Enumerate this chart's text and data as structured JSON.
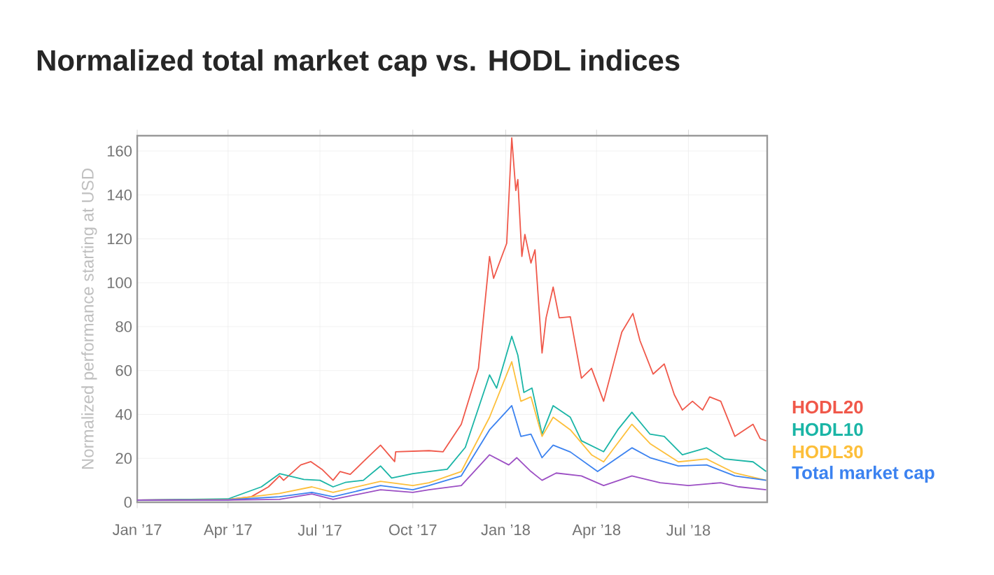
{
  "chart_data": {
    "type": "line",
    "title": "Normalized total market cap vs. HODL indices",
    "ylabel": "Normalized performance starting at USD",
    "xlim": [
      "2017-01-01",
      "2018-09-17"
    ],
    "xticks": [
      {
        "value": "2017-01-01",
        "label": "Jan ’17"
      },
      {
        "value": "2017-04-01",
        "label": "Apr ’17"
      },
      {
        "value": "2017-07-01",
        "label": "Jul ’17"
      },
      {
        "value": "2017-10-01",
        "label": "Oct ’17"
      },
      {
        "value": "2018-01-01",
        "label": "Jan ’18"
      },
      {
        "value": "2018-04-01",
        "label": "Apr ’18"
      },
      {
        "value": "2018-07-01",
        "label": "Jul ’18"
      }
    ],
    "ylim": [
      0,
      167
    ],
    "yticks": [
      0,
      20,
      40,
      60,
      80,
      100,
      120,
      140,
      160
    ],
    "grid": true,
    "legend": "right",
    "series": [
      {
        "name": "HODL20",
        "color": "#f0584a",
        "x": [
          "2017-01-01",
          "2017-04-01",
          "2017-04-24",
          "2017-05-11",
          "2017-05-22",
          "2017-05-26",
          "2017-06-12",
          "2017-06-22",
          "2017-07-03",
          "2017-07-14",
          "2017-07-21",
          "2017-07-31",
          "2017-08-13",
          "2017-08-30",
          "2017-09-13",
          "2017-09-14",
          "2017-10-17",
          "2017-10-31",
          "2017-11-18",
          "2017-12-05",
          "2017-12-16",
          "2017-12-20",
          "2018-01-02",
          "2018-01-07",
          "2018-01-11",
          "2018-01-13",
          "2018-01-17",
          "2018-01-20",
          "2018-01-26",
          "2018-01-30",
          "2018-02-06",
          "2018-02-10",
          "2018-02-17",
          "2018-02-23",
          "2018-03-06",
          "2018-03-17",
          "2018-03-27",
          "2018-04-08",
          "2018-04-16",
          "2018-04-26",
          "2018-05-07",
          "2018-05-14",
          "2018-05-27",
          "2018-06-07",
          "2018-06-17",
          "2018-06-25",
          "2018-07-05",
          "2018-07-15",
          "2018-07-22",
          "2018-08-02",
          "2018-08-16",
          "2018-09-03",
          "2018-09-10",
          "2018-09-16"
        ],
        "values": [
          1,
          1.3,
          2.5,
          7,
          12,
          10,
          17,
          18.5,
          15,
          10,
          14,
          12.7,
          18.5,
          26,
          18.5,
          23,
          23.5,
          23,
          35.5,
          61,
          112,
          102,
          118,
          166,
          142,
          147,
          112,
          122,
          109,
          115,
          68,
          84,
          98,
          84,
          84.5,
          56.5,
          61,
          46,
          60,
          77.5,
          86,
          73.6,
          58.4,
          63,
          49,
          42,
          46,
          42,
          48,
          46,
          30,
          35.5,
          29,
          28
        ]
      },
      {
        "name": "HODL10",
        "color": "#1ab5a6",
        "x": [
          "2017-01-01",
          "2017-04-01",
          "2017-05-04",
          "2017-05-22",
          "2017-06-15",
          "2017-07-01",
          "2017-07-14",
          "2017-07-26",
          "2017-08-13",
          "2017-08-30",
          "2017-09-10",
          "2017-10-01",
          "2017-10-17",
          "2017-11-04",
          "2017-11-22",
          "2017-12-16",
          "2017-12-23",
          "2018-01-07",
          "2018-01-13",
          "2018-01-19",
          "2018-01-27",
          "2018-02-06",
          "2018-02-17",
          "2018-03-06",
          "2018-03-17",
          "2018-04-08",
          "2018-04-22",
          "2018-05-06",
          "2018-05-24",
          "2018-06-07",
          "2018-06-25",
          "2018-07-19",
          "2018-08-06",
          "2018-09-03",
          "2018-09-16"
        ],
        "values": [
          1,
          1.5,
          7,
          13,
          10.4,
          10,
          7,
          9,
          10,
          16.5,
          11,
          13,
          14,
          15,
          25,
          58,
          52,
          75.6,
          67,
          50,
          52,
          31,
          44,
          38.7,
          28,
          23,
          33,
          41,
          31,
          30,
          21.6,
          24.8,
          19.7,
          18.4,
          14
        ]
      },
      {
        "name": "HODL30",
        "color": "#fdbf3a",
        "x": [
          "2017-01-01",
          "2017-04-01",
          "2017-05-22",
          "2017-06-23",
          "2017-07-14",
          "2017-08-30",
          "2017-10-01",
          "2017-10-17",
          "2017-11-18",
          "2017-12-16",
          "2018-01-07",
          "2018-01-16",
          "2018-01-26",
          "2018-02-06",
          "2018-02-17",
          "2018-03-06",
          "2018-03-27",
          "2018-04-08",
          "2018-05-06",
          "2018-05-24",
          "2018-06-21",
          "2018-07-19",
          "2018-08-16",
          "2018-09-16"
        ],
        "values": [
          1,
          1.2,
          4,
          7,
          4.5,
          9.5,
          7.6,
          8.9,
          14,
          38.7,
          64,
          46,
          48,
          30,
          38.7,
          33,
          21.6,
          18.4,
          35.5,
          26.7,
          18.4,
          19.7,
          13.3,
          10
        ]
      },
      {
        "name": "Total market cap",
        "color": "#3b82f0",
        "x": [
          "2017-01-01",
          "2017-04-01",
          "2017-05-22",
          "2017-06-23",
          "2017-07-14",
          "2017-08-30",
          "2017-10-01",
          "2017-10-17",
          "2017-11-18",
          "2017-12-16",
          "2018-01-07",
          "2018-01-16",
          "2018-01-26",
          "2018-02-06",
          "2018-02-17",
          "2018-03-06",
          "2018-04-02",
          "2018-05-06",
          "2018-05-24",
          "2018-06-21",
          "2018-07-19",
          "2018-08-16",
          "2018-09-16"
        ],
        "values": [
          1,
          1.1,
          2.5,
          4.5,
          2.5,
          7.6,
          5.7,
          7.6,
          12,
          33,
          44,
          30,
          31,
          20.3,
          26,
          22.9,
          14,
          24.8,
          20.3,
          16.5,
          17,
          12,
          10
        ]
      },
      {
        "color": "#9c4fc4",
        "x": [
          "2017-01-01",
          "2017-04-01",
          "2017-05-22",
          "2017-06-23",
          "2017-07-14",
          "2017-08-30",
          "2017-10-01",
          "2017-10-17",
          "2017-11-18",
          "2017-12-16",
          "2018-01-04",
          "2018-01-12",
          "2018-01-26",
          "2018-02-06",
          "2018-02-20",
          "2018-03-17",
          "2018-04-08",
          "2018-05-06",
          "2018-06-03",
          "2018-07-01",
          "2018-08-02",
          "2018-08-20",
          "2018-09-16"
        ],
        "values": [
          1,
          1,
          1.3,
          3.8,
          1.3,
          5.7,
          4.5,
          5.7,
          7.6,
          21.6,
          17,
          20.3,
          14,
          10,
          13.3,
          12,
          7.6,
          12,
          8.9,
          7.6,
          8.9,
          7,
          5.7
        ]
      }
    ]
  }
}
